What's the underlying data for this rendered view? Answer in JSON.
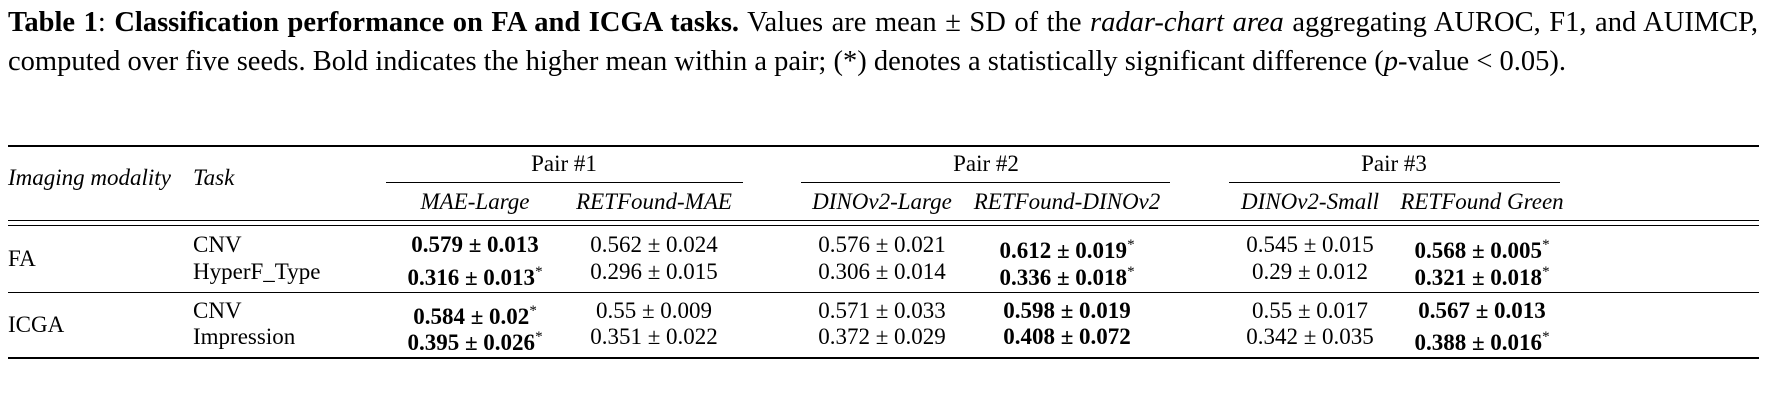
{
  "caption": {
    "label": "Table 1",
    "colon": ": ",
    "title": "Classification performance on FA and ICGA tasks.",
    "text1": " Values are mean ± SD of the ",
    "text_italic": "radar-chart area",
    "text2": " aggregating AUROC, F1, and AUIMCP, computed over five seeds. Bold indicates the higher mean within a pair; (*) denotes a statistically significant difference (",
    "p_symbol": "p",
    "text3": "-value < 0.05)."
  },
  "header": {
    "col_modality": "Imaging modality",
    "col_task": "Task",
    "pairs": [
      "Pair #1",
      "Pair #2",
      "Pair #3"
    ],
    "models": [
      "MAE-Large",
      "RETFound-MAE",
      "DINOv2-Large",
      "RETFound-DINOv2",
      "DINOv2-Small",
      "RETFound Green"
    ]
  },
  "rows": [
    {
      "modality": "FA",
      "tasks": [
        {
          "task": "CNV",
          "cells": [
            {
              "v": "0.579 ± 0.013",
              "bold": true,
              "star": ""
            },
            {
              "v": "0.562 ± 0.024",
              "bold": false,
              "star": ""
            },
            {
              "v": "0.576 ± 0.021",
              "bold": false,
              "star": ""
            },
            {
              "v": "0.612 ± 0.019",
              "bold": true,
              "star": "*"
            },
            {
              "v": "0.545 ± 0.015",
              "bold": false,
              "star": ""
            },
            {
              "v": "0.568 ± 0.005",
              "bold": true,
              "star": "*"
            }
          ]
        },
        {
          "task": "HyperF_Type",
          "cells": [
            {
              "v": "0.316 ± 0.013",
              "bold": true,
              "star": "*"
            },
            {
              "v": "0.296 ± 0.015",
              "bold": false,
              "star": ""
            },
            {
              "v": "0.306 ± 0.014",
              "bold": false,
              "star": ""
            },
            {
              "v": "0.336 ± 0.018",
              "bold": true,
              "star": "*"
            },
            {
              "v": "0.29 ± 0.012",
              "bold": false,
              "star": ""
            },
            {
              "v": "0.321 ± 0.018",
              "bold": true,
              "star": "*"
            }
          ]
        }
      ]
    },
    {
      "modality": "ICGA",
      "tasks": [
        {
          "task": "CNV",
          "cells": [
            {
              "v": "0.584 ± 0.02",
              "bold": true,
              "star": "*"
            },
            {
              "v": "0.55 ± 0.009",
              "bold": false,
              "star": ""
            },
            {
              "v": "0.571 ± 0.033",
              "bold": false,
              "star": ""
            },
            {
              "v": "0.598 ± 0.019",
              "bold": true,
              "star": ""
            },
            {
              "v": "0.55 ± 0.017",
              "bold": false,
              "star": ""
            },
            {
              "v": "0.567 ± 0.013",
              "bold": true,
              "star": ""
            }
          ]
        },
        {
          "task": "Impression",
          "cells": [
            {
              "v": "0.395 ± 0.026",
              "bold": true,
              "star": "*"
            },
            {
              "v": "0.351 ± 0.022",
              "bold": false,
              "star": ""
            },
            {
              "v": "0.372 ± 0.029",
              "bold": false,
              "star": ""
            },
            {
              "v": "0.408 ± 0.072",
              "bold": true,
              "star": ""
            },
            {
              "v": "0.342 ± 0.035",
              "bold": false,
              "star": ""
            },
            {
              "v": "0.388 ± 0.016",
              "bold": true,
              "star": "*"
            }
          ]
        }
      ]
    }
  ]
}
